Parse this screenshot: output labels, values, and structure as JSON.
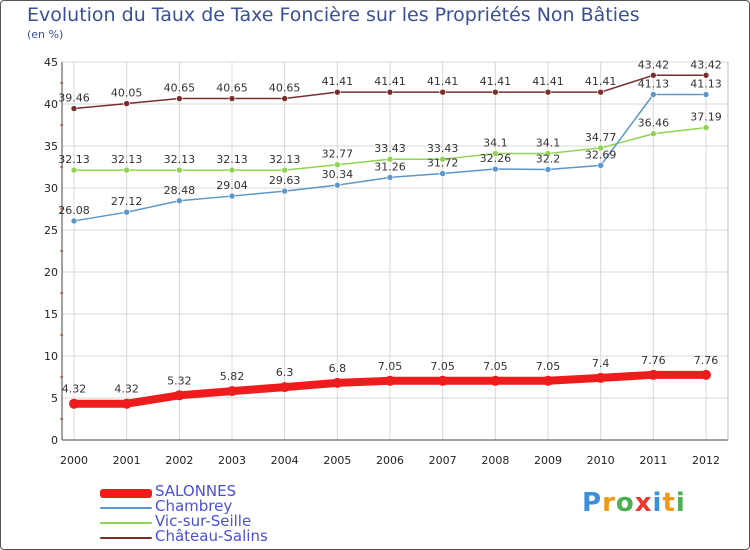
{
  "page": {
    "title": "Evolution du Taux de Taxe Foncière sur les Propriétés Non Bâties",
    "subtitle": "(en %)"
  },
  "logo": {
    "text": "Proxiti",
    "letters": [
      "P",
      "r",
      "o",
      "x",
      "i",
      "t",
      "i"
    ],
    "colors": [
      "#3c8fd9",
      "#f09a1c",
      "#4caf50",
      "#e8392e",
      "#3c8fd9",
      "#f09a1c",
      "#4caf50"
    ]
  },
  "chart_data": {
    "type": "line",
    "title": "Evolution du Taux de Taxe Foncière sur les Propriétés Non Bâties",
    "ylabel": "(en %)",
    "xlabel": "",
    "ylim": [
      0,
      45
    ],
    "yticks": [
      0,
      5,
      10,
      15,
      20,
      25,
      30,
      35,
      40,
      45
    ],
    "categories": [
      "2000",
      "2001",
      "2002",
      "2003",
      "2004",
      "2005",
      "2006",
      "2007",
      "2008",
      "2009",
      "2010",
      "2011",
      "2012"
    ],
    "series": [
      {
        "name": "SALONNES",
        "color": "#ee1c1c",
        "width": 8,
        "marker": 5,
        "values": [
          4.32,
          4.32,
          5.32,
          5.82,
          6.3,
          6.8,
          7.05,
          7.05,
          7.05,
          7.05,
          7.4,
          7.76,
          7.76
        ],
        "labels": [
          "4.32",
          "4.32",
          "5.32",
          "5.82",
          "6.3",
          "6.8",
          "7.05",
          "7.05",
          "7.05",
          "7.05",
          "7.4",
          "7.76",
          "7.76"
        ]
      },
      {
        "name": "Chambrey",
        "color": "#5b97c9",
        "width": 1.5,
        "marker": 3,
        "values": [
          26.08,
          27.12,
          28.48,
          29.04,
          29.63,
          30.34,
          31.26,
          31.72,
          32.26,
          32.2,
          32.69,
          41.13,
          41.13
        ],
        "labels": [
          "26.08",
          "27.12",
          "28.48",
          "29.04",
          "29.63",
          "30.34",
          "31.26",
          "31.72",
          "32.26",
          "32.2",
          "32.69",
          "41.13",
          "41.13"
        ]
      },
      {
        "name": "Vic-sur-Seille",
        "color": "#8fd44f",
        "width": 1.5,
        "marker": 3,
        "values": [
          32.13,
          32.13,
          32.13,
          32.13,
          32.13,
          32.77,
          33.43,
          33.43,
          34.1,
          34.1,
          34.77,
          36.46,
          37.19
        ],
        "labels": [
          "32.13",
          "32.13",
          "32.13",
          "32.13",
          "32.13",
          "32.77",
          "33.43",
          "33.43",
          "34.1",
          "34.1",
          "34.77",
          "36.46",
          "37.19"
        ]
      },
      {
        "name": "Château-Salins",
        "color": "#7a2e2a",
        "width": 1.5,
        "marker": 3,
        "values": [
          39.46,
          40.05,
          40.65,
          40.65,
          40.65,
          41.41,
          41.41,
          41.41,
          41.41,
          41.41,
          41.41,
          43.42,
          43.42
        ],
        "labels": [
          "39.46",
          "40.05",
          "40.65",
          "40.65",
          "40.65",
          "41.41",
          "41.41",
          "41.41",
          "41.41",
          "41.41",
          "41.41",
          "43.42",
          "43.42"
        ]
      }
    ],
    "legend_position": "bottom-left"
  }
}
